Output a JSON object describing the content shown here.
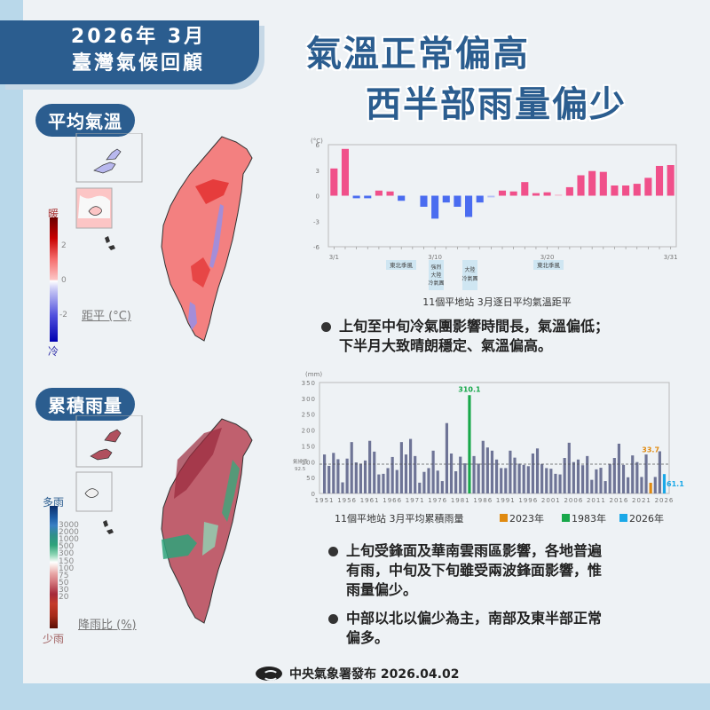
{
  "header": {
    "line1": "2026年 3月",
    "line2": "臺灣氣候回顧"
  },
  "headline": {
    "line1": "氣溫正常偏高",
    "line2": "西半部雨量偏少"
  },
  "temperature_section": {
    "pill": "平均氣溫",
    "legend": {
      "top_label": "暖",
      "bottom_label": "冷",
      "ticks": [
        "2",
        "0",
        "-2"
      ],
      "title": "距平 (°C)",
      "colors": [
        "#6b0000",
        "#a50000",
        "#c80000",
        "#e01a1a",
        "#f04040",
        "#f56b6b",
        "#f99a9a",
        "#fcc5c5",
        "#ffffff",
        "#c8c8f5",
        "#a0a0ee",
        "#7878e6",
        "#5050dd",
        "#2828d0",
        "#0000b0"
      ]
    },
    "chart_caption": "11個平地站 3月逐日平均氣溫距平",
    "unit": "(°C)",
    "annotations": [
      {
        "label": "東北季風",
        "day": 5.5
      },
      {
        "label": "強烈大陸冷氣團",
        "day": 10
      },
      {
        "label": "大陸冷氣團",
        "day": 13
      },
      {
        "label": "東北季風",
        "day": 20
      }
    ],
    "bullet": "上旬至中旬冷氣團影響時間長，氣溫偏低；下半月大致晴朗穩定、氣溫偏高。",
    "bullet_line1": "上旬至中旬冷氣團影響時間長，氣溫偏低；",
    "bullet_line2": "下半月大致晴朗穩定、氣溫偏高。"
  },
  "rain_section": {
    "pill": "累積雨量",
    "legend": {
      "top_label": "多雨",
      "bottom_label": "少雨",
      "ticks": [
        "3000",
        "2000",
        "1000",
        "500",
        "300",
        "150",
        "100",
        "75",
        "50",
        "30",
        "20"
      ],
      "title": "降雨比 (%)",
      "colors": [
        "#0b2f6b",
        "#1f5fa8",
        "#3a7fc4",
        "#4d9ac8",
        "#2f8f8a",
        "#2ea37a",
        "#5cbf95",
        "#8fd6b5",
        "#c5ecdc",
        "#ffffff",
        "#f6dcd8",
        "#e8a8a8",
        "#d4787e",
        "#bd4c58",
        "#a52a3a",
        "#c43a2a",
        "#d2553a",
        "#c0452a",
        "#a52a18",
        "#7a1608",
        "#5a0e04"
      ]
    },
    "chart_caption": "11個平地站  3月平均累積雨量",
    "legend_items": [
      {
        "label": "2023年",
        "color": "#e08a10"
      },
      {
        "label": "1983年",
        "color": "#18a84a"
      },
      {
        "label": "2026年",
        "color": "#1aa8e8"
      }
    ],
    "normal_label": "氣候值",
    "normal_value": "92.5",
    "bullets": [
      {
        "line1": "上旬受鋒面及華南雲雨區影響，各地普遍",
        "line2": "有雨，中旬及下旬雖受兩波鋒面影響，惟",
        "line3": "雨量偏少。"
      },
      {
        "line1": "中部以北以偏少為主，南部及東半部正常",
        "line2": "偏多。"
      }
    ]
  },
  "footer": {
    "text": "中央氣象署發布 2026.04.02"
  },
  "colors": {
    "brand_blue": "#2b5d8f",
    "warm_bar": "#f0508a",
    "cold_bar": "#4a6cf0",
    "rain_bar": "#6e7496",
    "highlight_1983": "#18a84a",
    "highlight_2023": "#e08a10",
    "highlight_2026": "#1aa8e8"
  },
  "chart_data": [
    {
      "type": "bar",
      "title": "11個平地站 3月逐日平均氣溫距平",
      "xlabel": "",
      "ylabel": "(°C)",
      "ylim": [
        -6,
        6
      ],
      "yticks": [
        6,
        3,
        0,
        -3,
        -6
      ],
      "xticks": [
        "3/1",
        "3/10",
        "3/20",
        "3/31"
      ],
      "grid": false,
      "categories": [
        "3/1",
        "3/2",
        "3/3",
        "3/4",
        "3/5",
        "3/6",
        "3/7",
        "3/8",
        "3/9",
        "3/10",
        "3/11",
        "3/12",
        "3/13",
        "3/14",
        "3/15",
        "3/16",
        "3/17",
        "3/18",
        "3/19",
        "3/20",
        "3/21",
        "3/22",
        "3/23",
        "3/24",
        "3/25",
        "3/26",
        "3/27",
        "3/28",
        "3/29",
        "3/30",
        "3/31"
      ],
      "values": [
        3.2,
        5.5,
        -0.3,
        -0.3,
        0.6,
        0.5,
        -0.6,
        0.0,
        -1.3,
        -2.7,
        -0.8,
        -1.3,
        -2.5,
        -0.8,
        -0.2,
        0.6,
        0.5,
        1.6,
        0.3,
        0.4,
        0.1,
        1.0,
        2.4,
        2.9,
        2.8,
        1.2,
        1.2,
        1.4,
        2.1,
        3.5,
        3.6
      ],
      "annotations": [
        "東北季風 (3/5-3/7)",
        "強烈大陸冷氣團 (3/10)",
        "大陸冷氣團 (3/13)",
        "東北季風 (3/20)"
      ]
    },
    {
      "type": "bar",
      "title": "11個平地站 3月平均累積雨量",
      "xlabel": "",
      "ylabel": "(mm)",
      "ylim": [
        0,
        350
      ],
      "yticks": [
        0,
        50,
        100,
        150,
        200,
        250,
        300,
        350
      ],
      "xticks": [
        "1951",
        "1956",
        "1961",
        "1966",
        "1971",
        "1976",
        "1981",
        "1986",
        "1991",
        "1996",
        "2001",
        "2006",
        "2011",
        "2016",
        "2021",
        "2026"
      ],
      "reference_line": {
        "label": "氣候值",
        "value": 92.5
      },
      "categories": [
        "1951",
        "1952",
        "1953",
        "1954",
        "1955",
        "1956",
        "1957",
        "1958",
        "1959",
        "1960",
        "1961",
        "1962",
        "1963",
        "1964",
        "1965",
        "1966",
        "1967",
        "1968",
        "1969",
        "1970",
        "1971",
        "1972",
        "1973",
        "1974",
        "1975",
        "1976",
        "1977",
        "1978",
        "1979",
        "1980",
        "1981",
        "1982",
        "1983",
        "1984",
        "1985",
        "1986",
        "1987",
        "1988",
        "1989",
        "1990",
        "1991",
        "1992",
        "1993",
        "1994",
        "1995",
        "1996",
        "1997",
        "1998",
        "1999",
        "2000",
        "2001",
        "2002",
        "2003",
        "2004",
        "2005",
        "2006",
        "2007",
        "2008",
        "2009",
        "2010",
        "2011",
        "2012",
        "2013",
        "2014",
        "2015",
        "2016",
        "2017",
        "2018",
        "2019",
        "2020",
        "2021",
        "2022",
        "2023",
        "2024",
        "2025",
        "2026"
      ],
      "values": [
        123,
        87,
        128,
        108,
        35,
        110,
        162,
        98,
        94,
        104,
        166,
        132,
        60,
        62,
        80,
        115,
        74,
        162,
        123,
        172,
        118,
        34,
        68,
        80,
        135,
        72,
        39,
        222,
        126,
        70,
        116,
        95,
        310.1,
        118,
        94,
        166,
        145,
        135,
        107,
        80,
        80,
        135,
        113,
        94,
        90,
        86,
        126,
        142,
        93,
        80,
        78,
        62,
        60,
        112,
        160,
        99,
        107,
        89,
        118,
        43,
        76,
        81,
        39,
        93,
        112,
        157,
        90,
        51,
        120,
        99,
        52,
        123,
        33.7,
        52,
        133,
        61.1
      ],
      "highlights": [
        {
          "year": "1983",
          "value": 310.1,
          "color": "#18a84a"
        },
        {
          "year": "2023",
          "value": 33.7,
          "color": "#e08a10"
        },
        {
          "year": "2026",
          "value": 61.1,
          "color": "#1aa8e8"
        }
      ],
      "legend": [
        "2023年",
        "1983年",
        "2026年"
      ]
    }
  ]
}
